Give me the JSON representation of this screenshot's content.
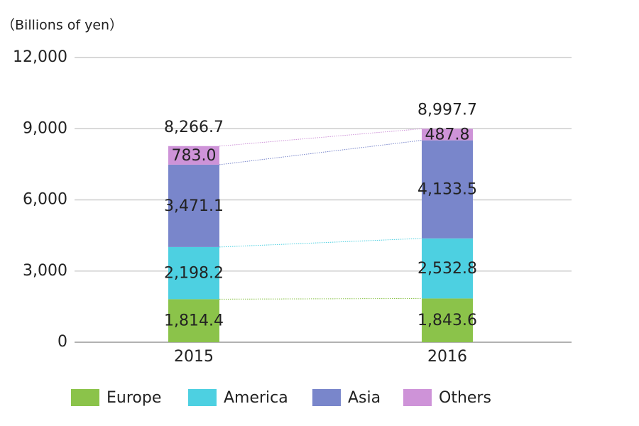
{
  "chart_data": {
    "type": "stacked_bar",
    "y_axis_label": "（Billions of yen）",
    "categories": [
      "2015",
      "2016"
    ],
    "series": [
      {
        "name": "Europe",
        "color": "#8bc34a",
        "values": [
          1814.4,
          1843.6
        ],
        "value_labels": [
          "1,814.4",
          "1,843.6"
        ]
      },
      {
        "name": "America",
        "color": "#4dd0e1",
        "values": [
          2198.2,
          2532.8
        ],
        "value_labels": [
          "2,198.2",
          "2,532.8"
        ]
      },
      {
        "name": "Asia",
        "color": "#7986cb",
        "values": [
          3471.1,
          4133.5
        ],
        "value_labels": [
          "3,471.1",
          "4,133.5"
        ]
      },
      {
        "name": "Others",
        "color": "#ce93d8",
        "values": [
          783.0,
          487.8
        ],
        "value_labels": [
          "783.0",
          "487.8"
        ]
      }
    ],
    "totals": [
      8266.7,
      8997.7
    ],
    "total_labels": [
      "8,266.7",
      "8,997.7"
    ],
    "ylim": [
      0,
      12000
    ],
    "yticks": [
      0,
      {
        "value": 3000,
        "label": "3,000"
      },
      {
        "value": 6000,
        "label": "6,000"
      },
      {
        "value": 9000,
        "label": "9,000"
      },
      {
        "value": 12000,
        "label": "12,000"
      }
    ],
    "grid": true,
    "legend": "bottom"
  }
}
